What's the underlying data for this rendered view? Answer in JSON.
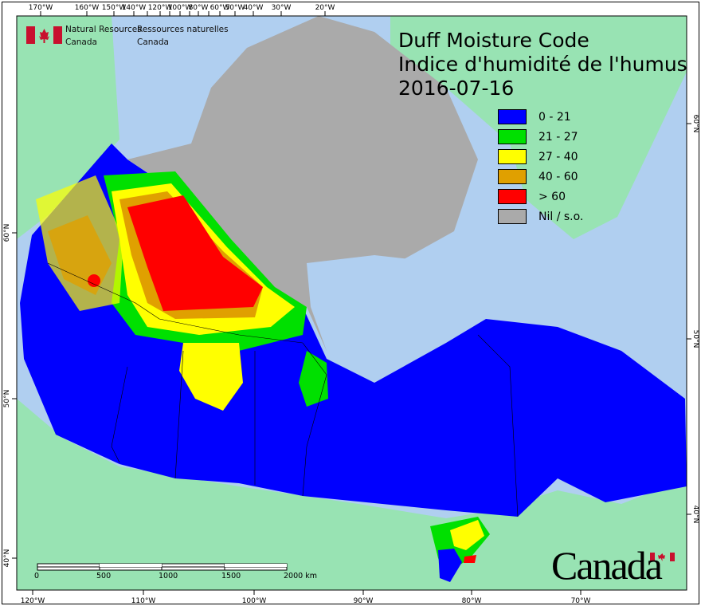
{
  "title": {
    "line1": "Duff Moisture Code",
    "line2": "Indice d'humidité de l'humus",
    "date": "2016-07-16"
  },
  "agency": {
    "en_line1": "Natural Resources",
    "en_line2": "Canada",
    "fr_line1": "Ressources naturelles",
    "fr_line2": "Canada"
  },
  "wordmark": "Canada",
  "legend": [
    {
      "label": "0 - 21",
      "color": "#0000ff"
    },
    {
      "label": "21 - 27",
      "color": "#00e000"
    },
    {
      "label": "27 - 40",
      "color": "#ffff00"
    },
    {
      "label": "40 - 60",
      "color": "#e0a000"
    },
    {
      "label": "> 60",
      "color": "#ff0000"
    },
    {
      "label": "Nil / s.o.",
      "color": "#aaaaaa"
    }
  ],
  "top_ticks": [
    "170°W",
    "160°W",
    "150°W",
    "140°W",
    "120°W",
    "100°W",
    "80°W",
    "60°W",
    "50°W",
    "40°W",
    "30°W",
    "20°W"
  ],
  "bottom_ticks": [
    "120°W",
    "110°W",
    "100°W",
    "90°W",
    "80°W",
    "70°W"
  ],
  "left_ticks": [
    "60°N",
    "50°N",
    "40°N"
  ],
  "right_ticks": [
    "60°N",
    "50°N",
    "40°N"
  ],
  "scale_bar": {
    "labels": [
      "0",
      "500",
      "1000",
      "1500",
      "2000 km"
    ]
  },
  "colors": {
    "ocean": "#b0cff0",
    "foreign_land": "#98e3b3",
    "frame": "#000000"
  }
}
